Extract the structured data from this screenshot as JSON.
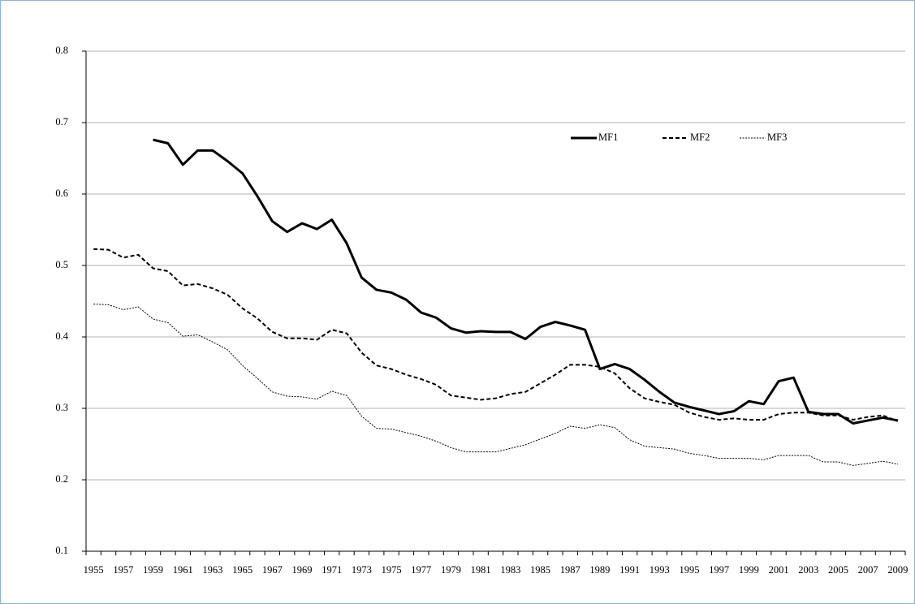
{
  "chart_data": {
    "type": "line",
    "categories": [
      "1955",
      null,
      "1957",
      null,
      "1959",
      null,
      "1961",
      null,
      "1963",
      null,
      "1965",
      null,
      "1967",
      null,
      "1969",
      null,
      "1971",
      null,
      "1973",
      null,
      "1975",
      null,
      "1977",
      null,
      "1979",
      null,
      "1981",
      null,
      "1983",
      null,
      "1985",
      null,
      "1987",
      null,
      "1989",
      null,
      "1991",
      null,
      "1993",
      null,
      "1995",
      null,
      "1997",
      null,
      "1999",
      null,
      "2001",
      null,
      "2003",
      null,
      "2005",
      null,
      "2007",
      null,
      "2009"
    ],
    "series": [
      {
        "name": "MF1",
        "color": "#000000",
        "line_style": "solid",
        "values": [
          null,
          null,
          null,
          null,
          0.676,
          0.671,
          0.641,
          0.661,
          0.661,
          0.646,
          0.629,
          0.597,
          0.562,
          0.547,
          0.559,
          0.551,
          0.564,
          0.531,
          0.483,
          0.466,
          0.462,
          0.452,
          0.434,
          0.427,
          0.412,
          0.406,
          0.408,
          0.407,
          0.407,
          0.397,
          0.414,
          0.421,
          0.416,
          0.41,
          0.355,
          0.362,
          0.355,
          0.34,
          0.323,
          0.308,
          0.302,
          0.297,
          0.292,
          0.296,
          0.31,
          0.306,
          0.338,
          0.343,
          0.295,
          0.292,
          0.292,
          0.279,
          0.283,
          0.287,
          0.283
        ]
      },
      {
        "name": "MF2",
        "color": "#000000",
        "line_style": "dashed",
        "values": [
          0.523,
          0.522,
          0.511,
          0.515,
          0.496,
          0.492,
          0.472,
          0.474,
          0.468,
          0.459,
          0.44,
          0.426,
          0.407,
          0.398,
          0.398,
          0.396,
          0.41,
          0.405,
          0.378,
          0.36,
          0.355,
          0.347,
          0.341,
          0.333,
          0.318,
          0.315,
          0.312,
          0.314,
          0.32,
          0.323,
          0.335,
          0.347,
          0.361,
          0.361,
          0.358,
          0.349,
          0.328,
          0.314,
          0.309,
          0.305,
          0.294,
          0.288,
          0.284,
          0.286,
          0.284,
          0.284,
          0.292,
          0.294,
          0.294,
          0.29,
          0.29,
          0.284,
          0.288,
          0.29,
          0.282
        ]
      },
      {
        "name": "MF3",
        "color": "#000000",
        "line_style": "dotted",
        "values": [
          0.446,
          0.445,
          0.438,
          0.442,
          0.425,
          0.42,
          0.401,
          0.403,
          0.393,
          0.382,
          0.36,
          0.342,
          0.323,
          0.317,
          0.316,
          0.313,
          0.324,
          0.318,
          0.289,
          0.272,
          0.271,
          0.266,
          0.261,
          0.254,
          0.245,
          0.239,
          0.239,
          0.239,
          0.244,
          0.249,
          0.257,
          0.265,
          0.275,
          0.272,
          0.277,
          0.273,
          0.256,
          0.247,
          0.245,
          0.243,
          0.237,
          0.234,
          0.23,
          0.23,
          0.23,
          0.228,
          0.234,
          0.234,
          0.234,
          0.225,
          0.225,
          0.22,
          0.223,
          0.226,
          0.222
        ]
      }
    ],
    "ylim": [
      0.1,
      0.8
    ],
    "yticks": [
      0.1,
      0.2,
      0.3,
      0.4,
      0.5,
      0.6,
      0.7,
      0.8
    ],
    "grid": true
  }
}
